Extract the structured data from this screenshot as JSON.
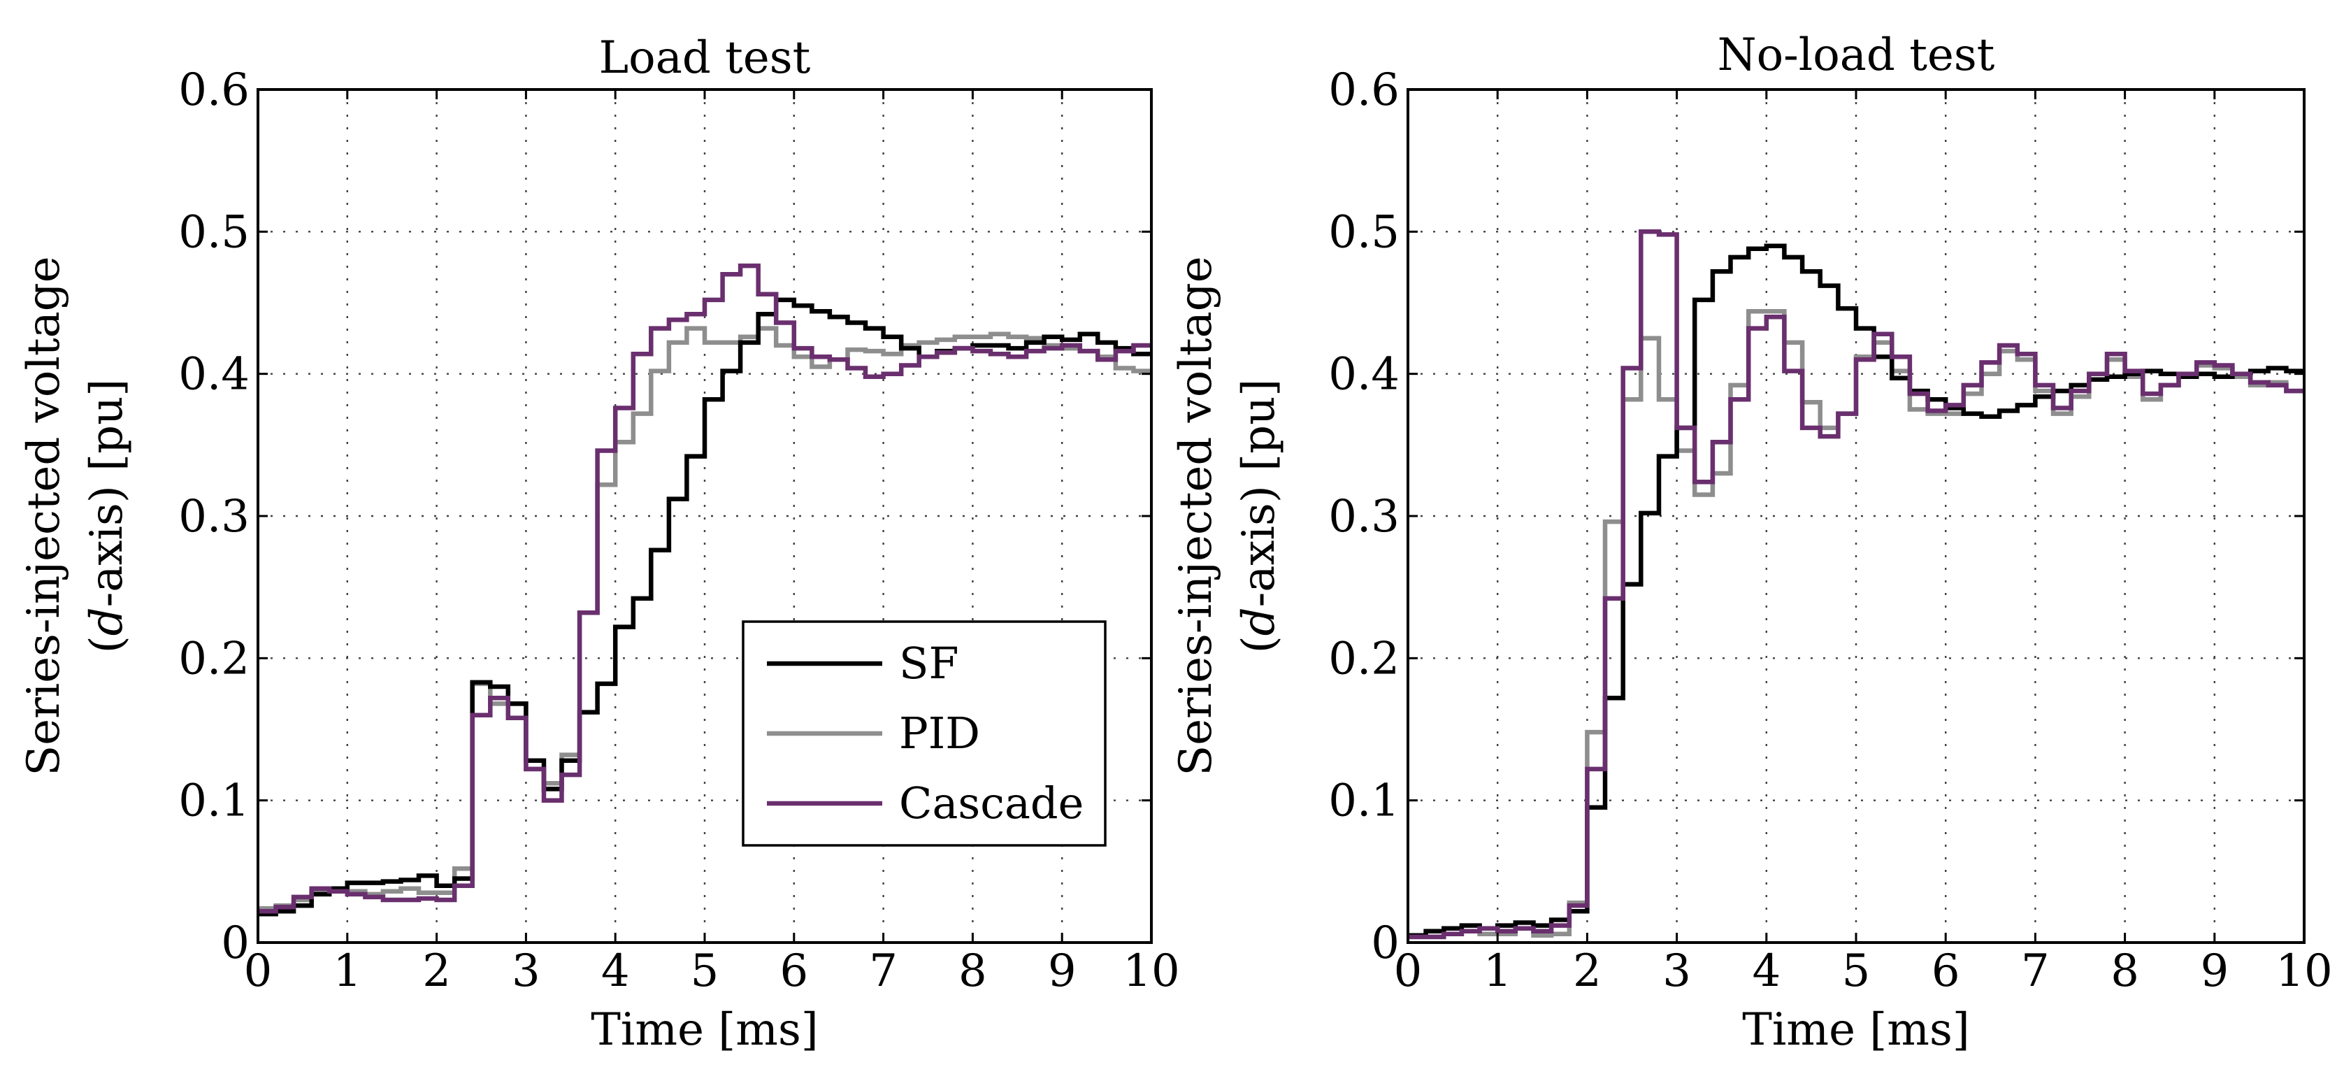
{
  "chart_data": [
    {
      "type": "line",
      "title": "Load test",
      "xlabel": "Time [ms]",
      "ylabel": [
        "Series-injected voltage",
        "(d-axis) [pu]"
      ],
      "xlim": [
        0,
        10
      ],
      "ylim": [
        0,
        0.6
      ],
      "xticks": [
        0,
        1,
        2,
        3,
        4,
        5,
        6,
        7,
        8,
        9,
        10
      ],
      "yticks": [
        0,
        0.1,
        0.2,
        0.3,
        0.4,
        0.5,
        0.6
      ],
      "ytick_labels": [
        "0",
        "0.1",
        "0.2",
        "0.3",
        "0.4",
        "0.5",
        "0.6"
      ],
      "grid": true,
      "legend": "center-bottom",
      "step": 0.2,
      "series": [
        {
          "name": "SF",
          "color": "#000000",
          "values": [
            0.02,
            0.022,
            0.026,
            0.034,
            0.038,
            0.042,
            0.042,
            0.043,
            0.044,
            0.047,
            0.04,
            0.045,
            0.183,
            0.18,
            0.168,
            0.128,
            0.108,
            0.128,
            0.162,
            0.182,
            0.222,
            0.242,
            0.276,
            0.312,
            0.342,
            0.382,
            0.402,
            0.422,
            0.442,
            0.452,
            0.448,
            0.444,
            0.44,
            0.436,
            0.432,
            0.426,
            0.418,
            0.412,
            0.416,
            0.418,
            0.42,
            0.42,
            0.418,
            0.422,
            0.426,
            0.424,
            0.428,
            0.422,
            0.418,
            0.414
          ]
        },
        {
          "name": "PID",
          "color": "#8e8e8e",
          "values": [
            0.024,
            0.026,
            0.03,
            0.036,
            0.036,
            0.036,
            0.034,
            0.036,
            0.038,
            0.035,
            0.035,
            0.052,
            0.182,
            0.168,
            0.168,
            0.122,
            0.112,
            0.132,
            0.232,
            0.322,
            0.352,
            0.372,
            0.402,
            0.422,
            0.432,
            0.422,
            0.422,
            0.426,
            0.432,
            0.42,
            0.412,
            0.405,
            0.41,
            0.417,
            0.416,
            0.414,
            0.42,
            0.422,
            0.424,
            0.426,
            0.426,
            0.428,
            0.426,
            0.425,
            0.42,
            0.418,
            0.416,
            0.412,
            0.404,
            0.402
          ]
        },
        {
          "name": "Cascade",
          "color": "#6a2f6e",
          "values": [
            0.022,
            0.025,
            0.032,
            0.038,
            0.036,
            0.034,
            0.032,
            0.03,
            0.03,
            0.031,
            0.03,
            0.04,
            0.16,
            0.172,
            0.158,
            0.122,
            0.1,
            0.118,
            0.232,
            0.346,
            0.376,
            0.414,
            0.432,
            0.438,
            0.442,
            0.452,
            0.47,
            0.476,
            0.456,
            0.436,
            0.418,
            0.412,
            0.41,
            0.404,
            0.398,
            0.4,
            0.406,
            0.412,
            0.415,
            0.418,
            0.416,
            0.414,
            0.412,
            0.416,
            0.418,
            0.42,
            0.416,
            0.41,
            0.416,
            0.42
          ]
        }
      ]
    },
    {
      "type": "line",
      "title": "No-load test",
      "xlabel": "Time [ms]",
      "ylabel": [
        "Series-injected voltage",
        "(d-axis) [pu]"
      ],
      "xlim": [
        0,
        10
      ],
      "ylim": [
        0,
        0.6
      ],
      "xticks": [
        0,
        1,
        2,
        3,
        4,
        5,
        6,
        7,
        8,
        9,
        10
      ],
      "yticks": [
        0,
        0.1,
        0.2,
        0.3,
        0.4,
        0.5,
        0.6
      ],
      "ytick_labels": [
        "0",
        "0.1",
        "0.2",
        "0.3",
        "0.4",
        "0.5",
        "0.6"
      ],
      "grid": true,
      "step": 0.2,
      "series": [
        {
          "name": "SF",
          "color": "#000000",
          "values": [
            0.005,
            0.008,
            0.01,
            0.012,
            0.01,
            0.012,
            0.014,
            0.012,
            0.016,
            0.022,
            0.095,
            0.172,
            0.252,
            0.302,
            0.342,
            0.362,
            0.452,
            0.472,
            0.482,
            0.488,
            0.49,
            0.482,
            0.472,
            0.462,
            0.446,
            0.432,
            0.412,
            0.397,
            0.388,
            0.382,
            0.376,
            0.372,
            0.37,
            0.374,
            0.378,
            0.384,
            0.388,
            0.392,
            0.396,
            0.398,
            0.4,
            0.402,
            0.4,
            0.398,
            0.4,
            0.398,
            0.4,
            0.402,
            0.404,
            0.402
          ]
        },
        {
          "name": "PID",
          "color": "#8e8e8e",
          "values": [
            0.004,
            0.004,
            0.006,
            0.008,
            0.006,
            0.006,
            0.01,
            0.005,
            0.006,
            0.028,
            0.148,
            0.296,
            0.382,
            0.425,
            0.382,
            0.346,
            0.315,
            0.33,
            0.392,
            0.444,
            0.444,
            0.422,
            0.38,
            0.362,
            0.372,
            0.412,
            0.422,
            0.402,
            0.375,
            0.372,
            0.372,
            0.386,
            0.4,
            0.416,
            0.41,
            0.388,
            0.372,
            0.384,
            0.396,
            0.41,
            0.398,
            0.382,
            0.392,
            0.398,
            0.406,
            0.404,
            0.398,
            0.392,
            0.394,
            0.388
          ]
        },
        {
          "name": "Cascade",
          "color": "#6a2f6e",
          "values": [
            0.004,
            0.004,
            0.006,
            0.008,
            0.01,
            0.008,
            0.01,
            0.008,
            0.012,
            0.026,
            0.122,
            0.242,
            0.404,
            0.5,
            0.498,
            0.362,
            0.324,
            0.352,
            0.382,
            0.432,
            0.44,
            0.402,
            0.362,
            0.356,
            0.372,
            0.41,
            0.428,
            0.412,
            0.386,
            0.374,
            0.378,
            0.392,
            0.408,
            0.42,
            0.414,
            0.392,
            0.376,
            0.388,
            0.4,
            0.414,
            0.402,
            0.386,
            0.392,
            0.4,
            0.408,
            0.406,
            0.4,
            0.394,
            0.392,
            0.388
          ]
        }
      ]
    }
  ]
}
